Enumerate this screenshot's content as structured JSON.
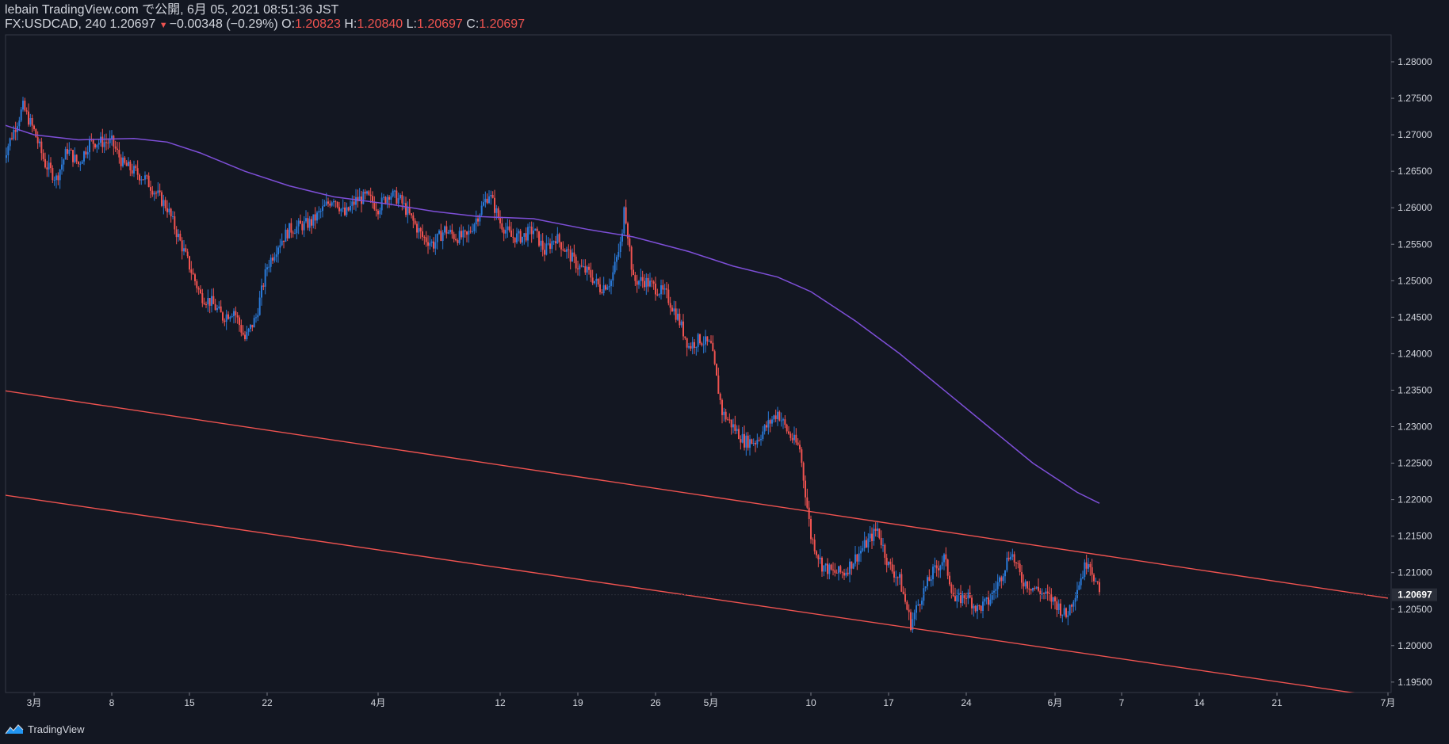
{
  "header": {
    "line1": "lebain TradingView.com で公開, 6月 05, 2021 08:51:36 JST",
    "symbol": "FX:USDCAD, 240",
    "last": "1.20697",
    "change": "−0.00348 (−0.29%)",
    "o_label": "O:",
    "o_value": "1.20823",
    "h_label": "H:",
    "h_value": "1.20840",
    "l_label": "L:",
    "l_value": "1.20697",
    "c_label": "C:",
    "c_value": "1.20697"
  },
  "footer": {
    "brand": "TradingView"
  },
  "colors": {
    "background": "#131722",
    "up": "#2a7ad8",
    "down": "#ef5350",
    "ma": "#7e4fd8",
    "trendline": "#ef5350",
    "text": "#d1d4dc"
  },
  "chart_data": {
    "type": "candlestick",
    "symbol": "FX:USDCAD",
    "interval": "240",
    "x_ticks": [
      {
        "label": "3月",
        "date": "2021-03-01"
      },
      {
        "label": "8",
        "date": "2021-03-08"
      },
      {
        "label": "15",
        "date": "2021-03-15"
      },
      {
        "label": "22",
        "date": "2021-03-22"
      },
      {
        "label": "4月",
        "date": "2021-04-01"
      },
      {
        "label": "12",
        "date": "2021-04-12"
      },
      {
        "label": "19",
        "date": "2021-04-19"
      },
      {
        "label": "26",
        "date": "2021-04-26"
      },
      {
        "label": "5月",
        "date": "2021-05-01"
      },
      {
        "label": "10",
        "date": "2021-05-10"
      },
      {
        "label": "17",
        "date": "2021-05-17"
      },
      {
        "label": "24",
        "date": "2021-05-24"
      },
      {
        "label": "6月",
        "date": "2021-06-01"
      },
      {
        "label": "7",
        "date": "2021-06-07"
      },
      {
        "label": "14",
        "date": "2021-06-14"
      },
      {
        "label": "21",
        "date": "2021-06-21"
      },
      {
        "label": "7月",
        "date": "2021-07-01"
      }
    ],
    "y_ticks": [
      "1.28000",
      "1.27500",
      "1.27000",
      "1.26500",
      "1.26000",
      "1.25500",
      "1.25000",
      "1.24500",
      "1.24000",
      "1.23500",
      "1.23000",
      "1.22500",
      "1.22000",
      "1.21500",
      "1.21000",
      "1.20500",
      "1.20000",
      "1.19500"
    ],
    "ylim": [
      1.1935,
      1.2842
    ],
    "last_price": "1.20697",
    "close_path": [
      [
        "2021-02-26",
        1.266
      ],
      [
        "2021-02-28",
        1.2738
      ],
      [
        "2021-03-01",
        1.2705
      ],
      [
        "2021-03-02",
        1.266
      ],
      [
        "2021-03-03",
        1.264
      ],
      [
        "2021-03-04",
        1.268
      ],
      [
        "2021-03-05",
        1.266
      ],
      [
        "2021-03-06",
        1.269
      ],
      [
        "2021-03-08",
        1.269
      ],
      [
        "2021-03-09",
        1.266
      ],
      [
        "2021-03-10",
        1.265
      ],
      [
        "2021-03-11",
        1.264
      ],
      [
        "2021-03-12",
        1.262
      ],
      [
        "2021-03-13",
        1.26
      ],
      [
        "2021-03-15",
        1.252
      ],
      [
        "2021-03-16",
        1.248
      ],
      [
        "2021-03-17",
        1.247
      ],
      [
        "2021-03-18",
        1.245
      ],
      [
        "2021-03-19",
        1.246
      ],
      [
        "2021-03-20",
        1.242
      ],
      [
        "2021-03-21",
        1.245
      ],
      [
        "2021-03-22",
        1.252
      ],
      [
        "2021-03-23",
        1.255
      ],
      [
        "2021-03-24",
        1.257
      ],
      [
        "2021-03-26",
        1.258
      ],
      [
        "2021-03-28",
        1.2615
      ],
      [
        "2021-03-29",
        1.259
      ],
      [
        "2021-03-30",
        1.261
      ],
      [
        "2021-03-31",
        1.2615
      ],
      [
        "2021-04-01",
        1.26
      ],
      [
        "2021-04-02",
        1.262
      ],
      [
        "2021-04-03",
        1.261
      ],
      [
        "2021-04-05",
        1.256
      ],
      [
        "2021-04-06",
        1.255
      ],
      [
        "2021-04-07",
        1.257
      ],
      [
        "2021-04-08",
        1.256
      ],
      [
        "2021-04-09",
        1.256
      ],
      [
        "2021-04-10",
        1.259
      ],
      [
        "2021-04-11",
        1.262
      ],
      [
        "2021-04-12",
        1.258
      ],
      [
        "2021-04-13",
        1.256
      ],
      [
        "2021-04-14",
        1.256
      ],
      [
        "2021-04-15",
        1.257
      ],
      [
        "2021-04-16",
        1.254
      ],
      [
        "2021-04-17",
        1.256
      ],
      [
        "2021-04-19",
        1.252
      ],
      [
        "2021-04-20",
        1.251
      ],
      [
        "2021-04-21",
        1.249
      ],
      [
        "2021-04-22",
        1.25
      ],
      [
        "2021-04-23",
        1.256
      ],
      [
        "2021-04-23",
        1.263
      ],
      [
        "2021-04-24",
        1.25
      ],
      [
        "2021-04-25",
        1.25
      ],
      [
        "2021-04-26",
        1.249
      ],
      [
        "2021-04-27",
        1.248
      ],
      [
        "2021-04-28",
        1.245
      ],
      [
        "2021-04-29",
        1.241
      ],
      [
        "2021-04-30",
        1.242
      ],
      [
        "2021-05-01",
        1.241
      ],
      [
        "2021-05-02",
        1.232
      ],
      [
        "2021-05-03",
        1.23
      ],
      [
        "2021-05-04",
        1.228
      ],
      [
        "2021-05-05",
        1.228
      ],
      [
        "2021-05-06",
        1.23
      ],
      [
        "2021-05-07",
        1.232
      ],
      [
        "2021-05-08",
        1.229
      ],
      [
        "2021-05-09",
        1.227
      ],
      [
        "2021-05-10",
        1.215
      ],
      [
        "2021-05-11",
        1.211
      ],
      [
        "2021-05-12",
        1.21
      ],
      [
        "2021-05-13",
        1.21
      ],
      [
        "2021-05-14",
        1.212
      ],
      [
        "2021-05-15",
        1.214
      ],
      [
        "2021-05-16",
        1.216
      ],
      [
        "2021-05-17",
        1.211
      ],
      [
        "2021-05-18",
        1.209
      ],
      [
        "2021-05-19",
        1.203
      ],
      [
        "2021-05-20",
        1.207
      ],
      [
        "2021-05-21",
        1.21
      ],
      [
        "2021-05-22",
        1.212
      ],
      [
        "2021-05-23",
        1.206
      ],
      [
        "2021-05-24",
        1.207
      ],
      [
        "2021-05-25",
        1.205
      ],
      [
        "2021-05-26",
        1.206
      ],
      [
        "2021-05-27",
        1.209
      ],
      [
        "2021-05-28",
        1.213
      ],
      [
        "2021-05-29",
        1.209
      ],
      [
        "2021-05-30",
        1.208
      ],
      [
        "2021-05-31",
        1.207
      ],
      [
        "2021-06-01",
        1.206
      ],
      [
        "2021-06-02",
        1.204
      ],
      [
        "2021-06-03",
        1.208
      ],
      [
        "2021-06-04",
        1.212
      ],
      [
        "2021-06-05",
        1.20697
      ]
    ],
    "moving_average": [
      [
        "2021-02-26",
        1.2715
      ],
      [
        "2021-03-01",
        1.27
      ],
      [
        "2021-03-05",
        1.2693
      ],
      [
        "2021-03-10",
        1.2695
      ],
      [
        "2021-03-13",
        1.269
      ],
      [
        "2021-03-16",
        1.2675
      ],
      [
        "2021-03-20",
        1.265
      ],
      [
        "2021-03-24",
        1.263
      ],
      [
        "2021-03-28",
        1.2615
      ],
      [
        "2021-04-02",
        1.2605
      ],
      [
        "2021-04-06",
        1.2595
      ],
      [
        "2021-04-10",
        1.2588
      ],
      [
        "2021-04-15",
        1.2585
      ],
      [
        "2021-04-20",
        1.257
      ],
      [
        "2021-04-24",
        1.256
      ],
      [
        "2021-04-29",
        1.254
      ],
      [
        "2021-05-03",
        1.252
      ],
      [
        "2021-05-07",
        1.2505
      ],
      [
        "2021-05-10",
        1.2485
      ],
      [
        "2021-05-14",
        1.2445
      ],
      [
        "2021-05-18",
        1.24
      ],
      [
        "2021-05-22",
        1.235
      ],
      [
        "2021-05-26",
        1.23
      ],
      [
        "2021-05-30",
        1.225
      ],
      [
        "2021-06-03",
        1.221
      ],
      [
        "2021-06-05",
        1.2195
      ]
    ],
    "trendlines": [
      {
        "from": [
          "2021-02-26",
          1.235
        ],
        "to": [
          "2021-07-01",
          1.2065
        ]
      },
      {
        "from": [
          "2021-02-26",
          1.2207
        ],
        "to": [
          "2021-06-28",
          1.1935
        ]
      }
    ]
  }
}
